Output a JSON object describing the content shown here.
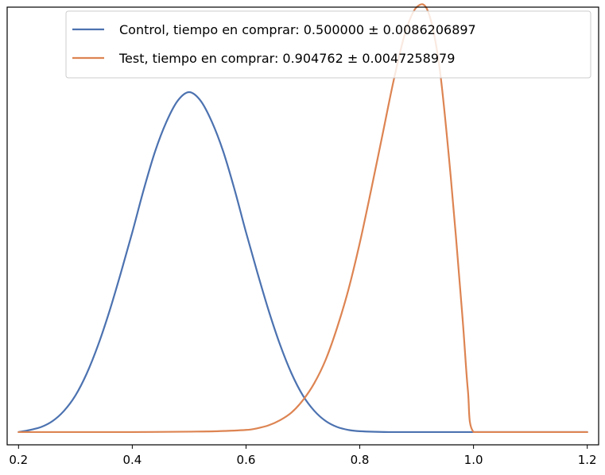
{
  "chart_data": {
    "type": "line",
    "title": "",
    "xlabel": "",
    "ylabel": "",
    "xlim": [
      0.18,
      1.22
    ],
    "ylim": [
      -0.03,
      1.0
    ],
    "x_ticks": [
      0.2,
      0.4,
      0.6,
      0.8,
      1.0,
      1.2
    ],
    "x_tick_labels": [
      "0.2",
      "0.4",
      "0.6",
      "0.8",
      "1.0",
      "1.2"
    ],
    "y_ticks_visible": false,
    "grid": false,
    "legend_position": "top-right",
    "series": [
      {
        "name": "Control, tiempo en comprar: 0.500000 ± 0.0086206897",
        "color": "#4c72b0",
        "x": [
          0.2,
          0.22,
          0.24,
          0.26,
          0.28,
          0.3,
          0.32,
          0.34,
          0.36,
          0.38,
          0.4,
          0.42,
          0.44,
          0.46,
          0.48,
          0.5,
          0.52,
          0.54,
          0.56,
          0.58,
          0.6,
          0.62,
          0.64,
          0.66,
          0.68,
          0.7,
          0.72,
          0.74,
          0.76,
          0.78,
          0.8,
          0.85,
          0.9,
          0.95,
          1.0,
          1.05,
          1.1,
          1.15,
          1.2
        ],
        "y": [
          0.0,
          0.005,
          0.012,
          0.026,
          0.05,
          0.086,
          0.138,
          0.205,
          0.285,
          0.375,
          0.47,
          0.57,
          0.66,
          0.73,
          0.78,
          0.8,
          0.78,
          0.73,
          0.66,
          0.57,
          0.47,
          0.375,
          0.285,
          0.205,
          0.138,
          0.086,
          0.05,
          0.026,
          0.012,
          0.005,
          0.002,
          0.0,
          0.0,
          0.0,
          0.0,
          0.0,
          0.0,
          0.0,
          0.0
        ]
      },
      {
        "name": "Test, tiempo en comprar: 0.904762 ± 0.0047258979",
        "color": "#dd8452",
        "x": [
          0.2,
          0.3,
          0.4,
          0.5,
          0.55,
          0.6,
          0.62,
          0.64,
          0.66,
          0.68,
          0.7,
          0.72,
          0.74,
          0.76,
          0.78,
          0.8,
          0.82,
          0.84,
          0.86,
          0.88,
          0.9,
          0.92,
          0.94,
          0.96,
          0.98,
          0.99,
          1.0,
          1.05,
          1.1,
          1.15,
          1.2
        ],
        "y": [
          0.0,
          0.0,
          0.0,
          0.001,
          0.002,
          0.005,
          0.009,
          0.016,
          0.028,
          0.046,
          0.075,
          0.115,
          0.17,
          0.245,
          0.335,
          0.445,
          0.57,
          0.7,
          0.83,
          0.94,
          1.0,
          0.99,
          0.86,
          0.6,
          0.28,
          0.1,
          0.0,
          0.0,
          0.0,
          0.0,
          0.0
        ]
      }
    ]
  }
}
